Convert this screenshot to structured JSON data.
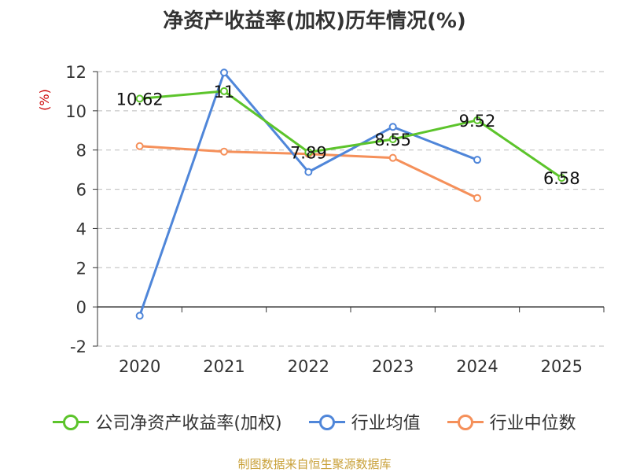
{
  "title": "净资产收益率(加权)历年情况(%)",
  "source": "制图数据来自恒生聚源数据库",
  "chart_data": {
    "type": "line",
    "title": "净资产收益率(加权)历年情况(%)",
    "ylabel": "(%)",
    "ylim": [
      -2,
      12
    ],
    "yticks": [
      -2,
      0,
      2,
      4,
      6,
      8,
      10,
      12
    ],
    "categories": [
      "2020",
      "2021",
      "2022",
      "2023",
      "2024",
      "2025"
    ],
    "grid": true,
    "legend_position": "bottom",
    "series": [
      {
        "name": "公司净资产收益率(加权)",
        "color": "#5cc42b",
        "values": [
          10.62,
          11,
          7.89,
          8.55,
          9.52,
          6.58
        ],
        "labels": [
          "10.62",
          "11",
          "7.89",
          "8.55",
          "9.52",
          "6.58"
        ]
      },
      {
        "name": "行业均值",
        "color": "#4f86d9",
        "values": [
          -0.45,
          11.95,
          6.88,
          9.18,
          7.5,
          null
        ]
      },
      {
        "name": "行业中位数",
        "color": "#f5905a",
        "values": [
          8.2,
          7.92,
          7.8,
          7.6,
          5.55,
          null
        ]
      }
    ]
  }
}
